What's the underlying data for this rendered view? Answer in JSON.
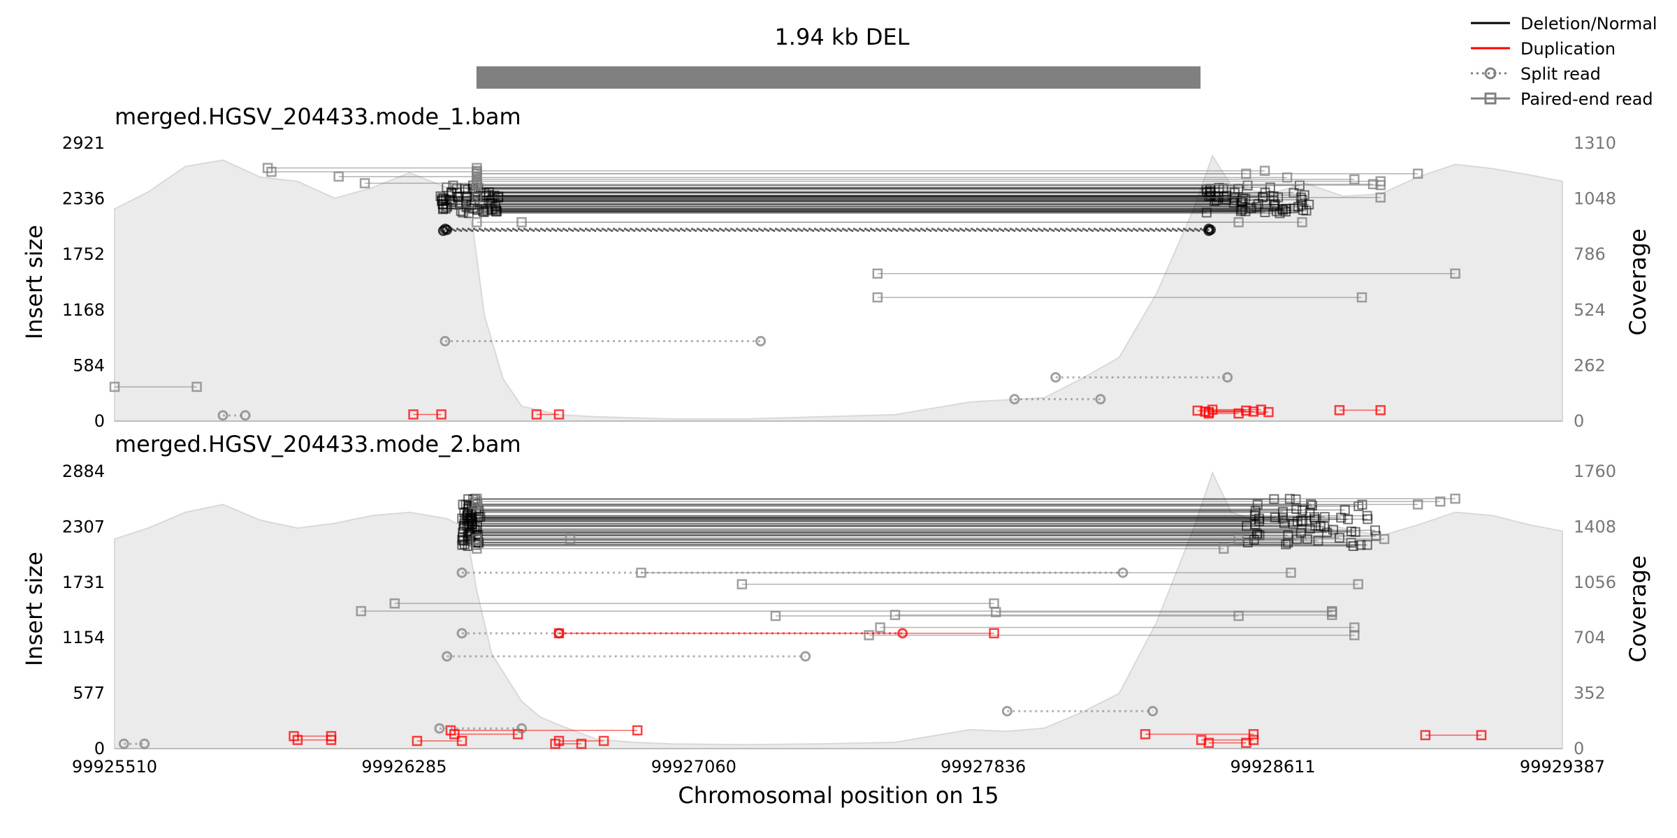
{
  "figure": {
    "title": "1.94 kb DEL",
    "xlabel": "Chromosomal position on 15",
    "x_range": [
      99925510,
      99929387
    ],
    "x_ticks": [
      "99925510",
      "99926285",
      "99927060",
      "99927836",
      "99928611",
      "99929387"
    ],
    "variant_bar": {
      "start": 99926479,
      "end": 99928418,
      "color": "#808080"
    }
  },
  "legend": {
    "placement": "top-right",
    "items": [
      {
        "label": "Deletion/Normal",
        "style": "solid",
        "color": "#000000",
        "marker": "none"
      },
      {
        "label": "Duplication",
        "style": "solid",
        "color": "#ff0000",
        "marker": "none"
      },
      {
        "label": "Split read",
        "style": "dotted",
        "color": "#808080",
        "marker": "circle"
      },
      {
        "label": "Paired-end read",
        "style": "solid",
        "color": "#808080",
        "marker": "square"
      }
    ]
  },
  "colors": {
    "deletion": "#000000",
    "duplication": "#ff0000",
    "coverage_fill": "#ebebeb",
    "coverage_edge": "#d9d9d9",
    "axis": "#bdbdbd"
  },
  "chart_data": [
    {
      "type": "scatter",
      "title": "merged.HGSV_204433.mode_1.bam",
      "ylabel": "Insert size",
      "y2label": "Coverage",
      "ylim": [
        0,
        2921
      ],
      "y2lim": [
        0,
        1310
      ],
      "y_ticks": [
        "0",
        "584",
        "1168",
        "1752",
        "2336",
        "2921"
      ],
      "y2_ticks": [
        "0",
        "262",
        "524",
        "786",
        "1048",
        "1310"
      ],
      "coverage": [
        [
          99925510,
          1000
        ],
        [
          99925600,
          1080
        ],
        [
          99925700,
          1200
        ],
        [
          99925800,
          1230
        ],
        [
          99925900,
          1150
        ],
        [
          99926000,
          1130
        ],
        [
          99926100,
          1050
        ],
        [
          99926200,
          1100
        ],
        [
          99926300,
          1170
        ],
        [
          99926400,
          1100
        ],
        [
          99926450,
          1030
        ],
        [
          99926470,
          900
        ],
        [
          99926500,
          500
        ],
        [
          99926550,
          200
        ],
        [
          99926600,
          70
        ],
        [
          99926700,
          30
        ],
        [
          99926800,
          20
        ],
        [
          99926900,
          15
        ],
        [
          99927000,
          10
        ],
        [
          99927200,
          10
        ],
        [
          99927400,
          20
        ],
        [
          99927600,
          30
        ],
        [
          99927800,
          90
        ],
        [
          99927900,
          100
        ],
        [
          99928000,
          110
        ],
        [
          99928100,
          200
        ],
        [
          99928200,
          300
        ],
        [
          99928300,
          600
        ],
        [
          99928400,
          1000
        ],
        [
          99928450,
          1250
        ],
        [
          99928500,
          1110
        ],
        [
          99928600,
          1070
        ],
        [
          99928700,
          1120
        ],
        [
          99928800,
          1060
        ],
        [
          99928900,
          1070
        ],
        [
          99929000,
          1150
        ],
        [
          99929100,
          1210
        ],
        [
          99929200,
          1190
        ],
        [
          99929300,
          1160
        ],
        [
          99929387,
          1130
        ]
      ],
      "deletion_reads": {
        "count": 60,
        "left_range": [
          99926380,
          99926540
        ],
        "right_range": [
          99928430,
          99928720
        ],
        "y_range": [
          2180,
          2480
        ]
      },
      "paired_reads": [
        {
          "x1": 99925920,
          "x2": 99926480,
          "y": 2660,
          "color": "#808080"
        },
        {
          "x1": 99925930,
          "x2": 99926480,
          "y": 2620,
          "color": "#808080"
        },
        {
          "x1": 99926110,
          "x2": 99926480,
          "y": 2570,
          "color": "#808080"
        },
        {
          "x1": 99926180,
          "x2": 99926480,
          "y": 2500,
          "color": "#808080"
        },
        {
          "x1": 99926480,
          "x2": 99928540,
          "y": 2600,
          "color": "#808080"
        },
        {
          "x1": 99926480,
          "x2": 99928590,
          "y": 2630,
          "color": "#808080"
        },
        {
          "x1": 99926480,
          "x2": 99928650,
          "y": 2560,
          "color": "#808080"
        },
        {
          "x1": 99926480,
          "x2": 99928830,
          "y": 2540,
          "color": "#808080"
        },
        {
          "x1": 99926480,
          "x2": 99928880,
          "y": 2490,
          "color": "#808080"
        },
        {
          "x1": 99926480,
          "x2": 99928900,
          "y": 2480,
          "color": "#808080"
        },
        {
          "x1": 99926480,
          "x2": 99928900,
          "y": 2520,
          "color": "#808080"
        },
        {
          "x1": 99926480,
          "x2": 99929000,
          "y": 2600,
          "color": "#808080"
        },
        {
          "x1": 99926480,
          "x2": 99928900,
          "y": 2350,
          "color": "#808080"
        },
        {
          "x1": 99926600,
          "x2": 99928520,
          "y": 2090,
          "color": "#808080"
        },
        {
          "x1": 99926480,
          "x2": 99928690,
          "y": 2090,
          "color": "#808080"
        },
        {
          "x1": 99927553,
          "x2": 99929100,
          "y": 1550,
          "color": "#808080"
        },
        {
          "x1": 99927553,
          "x2": 99928850,
          "y": 1300,
          "color": "#808080"
        },
        {
          "x1": 99925510,
          "x2": 99925730,
          "y": 360,
          "color": "#808080"
        },
        {
          "x1": 99926310,
          "x2": 99926385,
          "y": 70,
          "color": "#ff0000"
        },
        {
          "x1": 99926640,
          "x2": 99926700,
          "y": 70,
          "color": "#ff0000"
        },
        {
          "x1": 99928410,
          "x2": 99928540,
          "y": 110,
          "color": "#ff0000"
        },
        {
          "x1": 99928430,
          "x2": 99928560,
          "y": 100,
          "color": "#ff0000"
        },
        {
          "x1": 99928450,
          "x2": 99928580,
          "y": 120,
          "color": "#ff0000"
        },
        {
          "x1": 99928440,
          "x2": 99928520,
          "y": 80,
          "color": "#ff0000"
        },
        {
          "x1": 99928440,
          "x2": 99928600,
          "y": 95,
          "color": "#ff0000"
        },
        {
          "x1": 99928790,
          "x2": 99928900,
          "y": 115,
          "color": "#ff0000"
        }
      ],
      "split_reads": [
        {
          "x1": 99926390,
          "x2": 99928440,
          "y": 2000,
          "color": "#000000"
        },
        {
          "x1": 99926395,
          "x2": 99928440,
          "y": 2020,
          "color": "#000000"
        },
        {
          "x1": 99926400,
          "x2": 99928445,
          "y": 2010,
          "color": "#000000"
        },
        {
          "x1": 99926395,
          "x2": 99927240,
          "y": 840,
          "color": "#808080"
        },
        {
          "x1": 99928030,
          "x2": 99928490,
          "y": 460,
          "color": "#808080"
        },
        {
          "x1": 99927920,
          "x2": 99928150,
          "y": 230,
          "color": "#808080"
        },
        {
          "x1": 99925800,
          "x2": 99925860,
          "y": 60,
          "color": "#808080"
        }
      ]
    },
    {
      "type": "scatter",
      "title": "merged.HGSV_204433.mode_2.bam",
      "ylabel": "Insert size",
      "y2label": "Coverage",
      "ylim": [
        0,
        2884
      ],
      "y2lim": [
        0,
        1760
      ],
      "y_ticks": [
        "0",
        "577",
        "1154",
        "1731",
        "2307",
        "2884"
      ],
      "y2_ticks": [
        "0",
        "352",
        "704",
        "1056",
        "1408",
        "1760"
      ],
      "coverage": [
        [
          99925510,
          1330
        ],
        [
          99925600,
          1400
        ],
        [
          99925700,
          1500
        ],
        [
          99925800,
          1550
        ],
        [
          99925900,
          1450
        ],
        [
          99926000,
          1400
        ],
        [
          99926100,
          1430
        ],
        [
          99926200,
          1480
        ],
        [
          99926300,
          1500
        ],
        [
          99926400,
          1460
        ],
        [
          99926450,
          1400
        ],
        [
          99926480,
          1000
        ],
        [
          99926520,
          600
        ],
        [
          99926600,
          300
        ],
        [
          99926650,
          200
        ],
        [
          99926700,
          150
        ],
        [
          99926800,
          60
        ],
        [
          99926900,
          40
        ],
        [
          99927000,
          30
        ],
        [
          99927200,
          25
        ],
        [
          99927400,
          30
        ],
        [
          99927600,
          40
        ],
        [
          99927800,
          120
        ],
        [
          99927900,
          110
        ],
        [
          99928000,
          130
        ],
        [
          99928100,
          230
        ],
        [
          99928200,
          350
        ],
        [
          99928300,
          800
        ],
        [
          99928400,
          1400
        ],
        [
          99928450,
          1750
        ],
        [
          99928500,
          1500
        ],
        [
          99928600,
          1420
        ],
        [
          99928700,
          1450
        ],
        [
          99928800,
          1400
        ],
        [
          99928900,
          1350
        ],
        [
          99929000,
          1420
        ],
        [
          99929100,
          1500
        ],
        [
          99929200,
          1480
        ],
        [
          99929300,
          1420
        ],
        [
          99929387,
          1380
        ]
      ],
      "deletion_reads": {
        "count": 60,
        "left_range": [
          99926440,
          99926490
        ],
        "right_range": [
          99928540,
          99928890
        ],
        "y_range": [
          2100,
          2600
        ]
      },
      "paired_reads": [
        {
          "x1": 99926480,
          "x2": 99929100,
          "y": 2600,
          "color": "#808080"
        },
        {
          "x1": 99926480,
          "x2": 99929060,
          "y": 2570,
          "color": "#808080"
        },
        {
          "x1": 99926480,
          "x2": 99929000,
          "y": 2540,
          "color": "#808080"
        },
        {
          "x1": 99926480,
          "x2": 99928910,
          "y": 2180,
          "color": "#808080"
        },
        {
          "x1": 99926730,
          "x2": 99928520,
          "y": 2180,
          "color": "#808080"
        },
        {
          "x1": 99926480,
          "x2": 99928480,
          "y": 2080,
          "color": "#808080"
        },
        {
          "x1": 99926920,
          "x2": 99928660,
          "y": 1830,
          "color": "#808080"
        },
        {
          "x1": 99927190,
          "x2": 99928840,
          "y": 1710,
          "color": "#808080"
        },
        {
          "x1": 99926260,
          "x2": 99927865,
          "y": 1510,
          "color": "#808080"
        },
        {
          "x1": 99926170,
          "x2": 99928770,
          "y": 1430,
          "color": "#808080"
        },
        {
          "x1": 99927280,
          "x2": 99928520,
          "y": 1380,
          "color": "#808080"
        },
        {
          "x1": 99927600,
          "x2": 99928770,
          "y": 1390,
          "color": "#808080"
        },
        {
          "x1": 99927870,
          "x2": 99928770,
          "y": 1420,
          "color": "#808080"
        },
        {
          "x1": 99927560,
          "x2": 99928830,
          "y": 1260,
          "color": "#808080"
        },
        {
          "x1": 99927530,
          "x2": 99928830,
          "y": 1180,
          "color": "#808080"
        },
        {
          "x1": 99926700,
          "x2": 99927865,
          "y": 1200,
          "color": "#ff0000"
        },
        {
          "x1": 99925990,
          "x2": 99926090,
          "y": 130,
          "color": "#ff0000"
        },
        {
          "x1": 99926000,
          "x2": 99926090,
          "y": 90,
          "color": "#ff0000"
        },
        {
          "x1": 99926320,
          "x2": 99926440,
          "y": 80,
          "color": "#ff0000"
        },
        {
          "x1": 99926410,
          "x2": 99926910,
          "y": 190,
          "color": "#ff0000"
        },
        {
          "x1": 99926420,
          "x2": 99926590,
          "y": 150,
          "color": "#ff0000"
        },
        {
          "x1": 99926700,
          "x2": 99926820,
          "y": 80,
          "color": "#ff0000"
        },
        {
          "x1": 99926690,
          "x2": 99926760,
          "y": 50,
          "color": "#ff0000"
        },
        {
          "x1": 99928270,
          "x2": 99928560,
          "y": 150,
          "color": "#ff0000"
        },
        {
          "x1": 99928420,
          "x2": 99928560,
          "y": 90,
          "color": "#ff0000"
        },
        {
          "x1": 99928440,
          "x2": 99928540,
          "y": 60,
          "color": "#ff0000"
        },
        {
          "x1": 99929020,
          "x2": 99929170,
          "y": 140,
          "color": "#ff0000"
        }
      ],
      "split_reads": [
        {
          "x1": 99926440,
          "x2": 99928210,
          "y": 1830,
          "color": "#808080"
        },
        {
          "x1": 99926440,
          "x2": 99926700,
          "y": 1200,
          "color": "#808080"
        },
        {
          "x1": 99926700,
          "x2": 99927620,
          "y": 1200,
          "color": "#ff0000"
        },
        {
          "x1": 99926400,
          "x2": 99927360,
          "y": 960,
          "color": "#808080"
        },
        {
          "x1": 99927900,
          "x2": 99928290,
          "y": 390,
          "color": "#808080"
        },
        {
          "x1": 99926380,
          "x2": 99926600,
          "y": 210,
          "color": "#808080"
        },
        {
          "x1": 99925535,
          "x2": 99925590,
          "y": 50,
          "color": "#808080"
        }
      ]
    }
  ]
}
